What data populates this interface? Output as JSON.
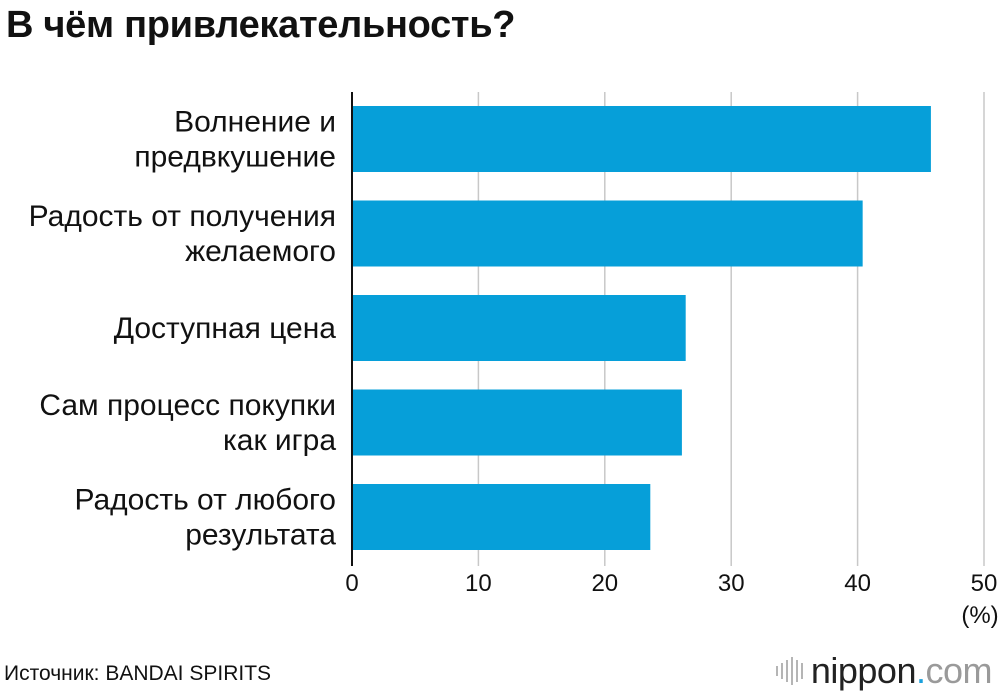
{
  "title": "В чём привлекательность?",
  "source": "Источник: BANDAI SPIRITS",
  "logo": {
    "name": "nippon",
    "dot": ".",
    "tld": "com",
    "icon": "nippon-sound-bars-icon"
  },
  "colors": {
    "bar": "#069fd9",
    "grid": "#c8c8c8",
    "axis": "#111111"
  },
  "chart_data": {
    "type": "bar",
    "orientation": "horizontal",
    "categories": [
      "Волнение и\nпредвкушение",
      "Радость от получения\nжелаемого",
      "Доступная цена",
      "Сам процесс покупки\nкак игра",
      "Радость от любого\nрезультата"
    ],
    "values": [
      45.8,
      40.4,
      26.4,
      26.1,
      23.6
    ],
    "xlim": [
      0,
      50
    ],
    "xticks": [
      0,
      10,
      20,
      30,
      40,
      50
    ],
    "xticks_labels": [
      "0",
      "10",
      "20",
      "30",
      "40",
      "50"
    ],
    "unit": "(%)",
    "grid": true
  }
}
